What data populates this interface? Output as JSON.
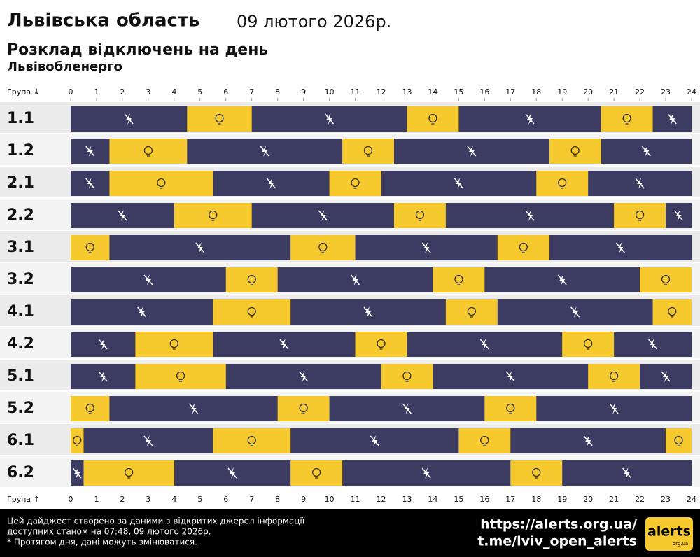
{
  "chart_data": {
    "type": "timeline",
    "title": "Львівська область",
    "date": "09 лютого 2026р.",
    "subtitle": "Розклад відключень на день",
    "provider": "Львівобленерго",
    "axis_label_top": "Група ↓",
    "axis_label_bottom": "Група ↑",
    "xlim": [
      0,
      24
    ],
    "xticks": [
      0,
      1,
      2,
      3,
      4,
      5,
      6,
      7,
      8,
      9,
      10,
      11,
      12,
      13,
      14,
      15,
      16,
      17,
      18,
      19,
      20,
      21,
      22,
      23,
      24
    ],
    "off_color": "#3c3c63",
    "on_color": "#f6c92e",
    "rows": [
      {
        "label": "1.1",
        "on": [
          [
            4.5,
            7
          ],
          [
            13,
            15
          ],
          [
            20.5,
            22.5
          ]
        ]
      },
      {
        "label": "1.2",
        "on": [
          [
            1.5,
            4.5
          ],
          [
            10.5,
            12.5
          ],
          [
            18.5,
            20.5
          ]
        ]
      },
      {
        "label": "2.1",
        "on": [
          [
            1.5,
            5.5
          ],
          [
            10,
            12
          ],
          [
            18,
            20
          ]
        ]
      },
      {
        "label": "2.2",
        "on": [
          [
            4,
            7
          ],
          [
            12.5,
            14.5
          ],
          [
            21,
            23
          ]
        ]
      },
      {
        "label": "3.1",
        "on": [
          [
            0,
            1.5
          ],
          [
            8.5,
            11
          ],
          [
            16.5,
            18.5
          ]
        ]
      },
      {
        "label": "3.2",
        "on": [
          [
            6,
            8
          ],
          [
            14,
            16
          ],
          [
            22,
            24
          ]
        ]
      },
      {
        "label": "4.1",
        "on": [
          [
            5.5,
            8.5
          ],
          [
            14.5,
            16.5
          ],
          [
            22.5,
            24
          ]
        ]
      },
      {
        "label": "4.2",
        "on": [
          [
            2.5,
            5.5
          ],
          [
            11,
            13
          ],
          [
            19,
            21
          ]
        ]
      },
      {
        "label": "5.1",
        "on": [
          [
            2.5,
            6
          ],
          [
            12,
            14
          ],
          [
            20,
            22
          ]
        ]
      },
      {
        "label": "5.2",
        "on": [
          [
            0,
            1.5
          ],
          [
            8,
            10
          ],
          [
            16,
            18
          ]
        ]
      },
      {
        "label": "6.1",
        "on": [
          [
            0,
            0.5
          ],
          [
            5.5,
            8.5
          ],
          [
            15,
            17
          ],
          [
            23,
            24
          ]
        ]
      },
      {
        "label": "6.2",
        "on": [
          [
            0.5,
            4
          ],
          [
            8.5,
            10.5
          ],
          [
            17,
            19
          ]
        ]
      }
    ]
  },
  "footer": {
    "lines": [
      "Цей дайджест створено за даними з відкритих джерел інформації",
      "доступних станом на 07:48, 09 лютого 2026р.",
      "* Протягом дня, дані можуть змінюватися."
    ],
    "links": [
      "https://alerts.org.ua/",
      "t.me/lviv_open_alerts"
    ],
    "logo": "alerts",
    "logo_sub": "org.ua"
  }
}
